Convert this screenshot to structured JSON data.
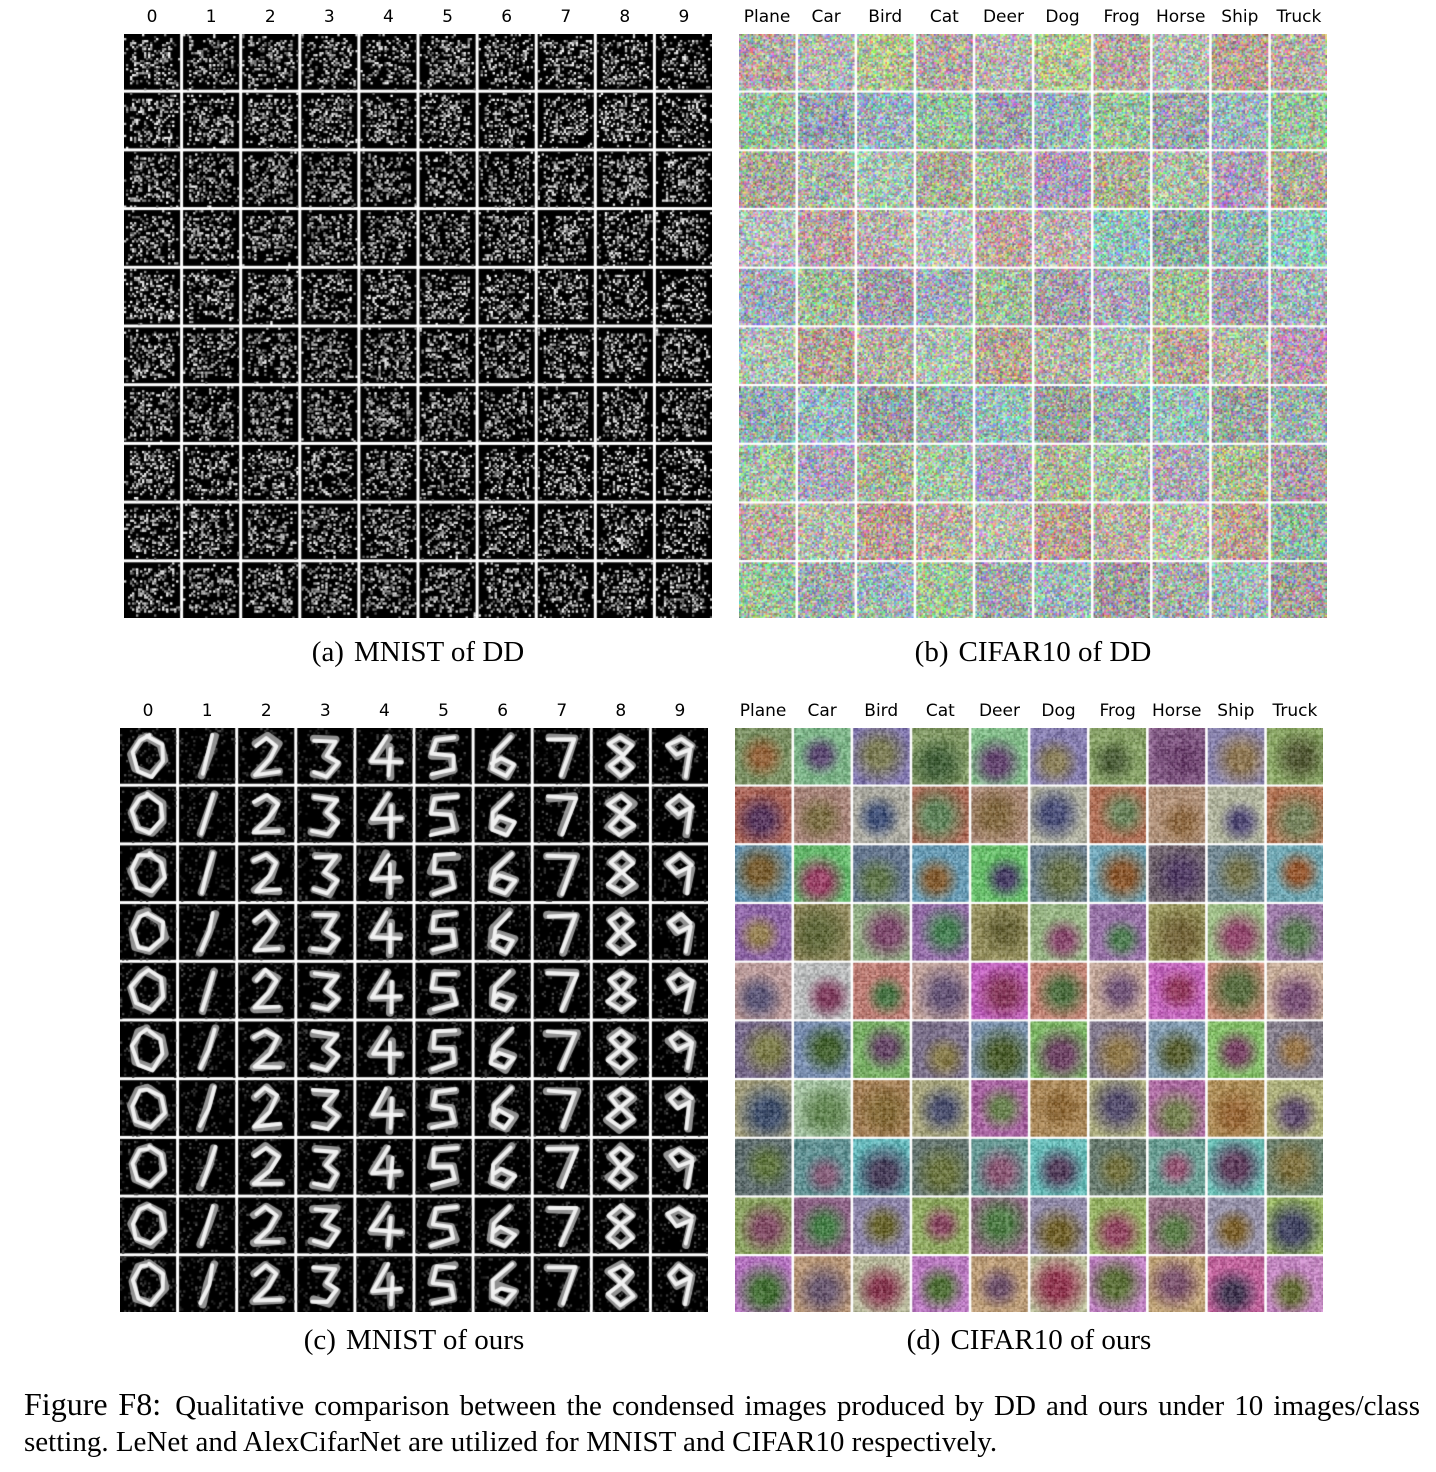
{
  "figure": {
    "label": "Figure F8:",
    "caption": "Qualitative comparison between the condensed images produced by DD and ours under 10 images/class setting. LeNet and AlexCifarNet are utilized for MNIST and CIFAR10 respectively."
  },
  "panels": [
    {
      "id": "a",
      "tag": "(a)",
      "title": "MNIST of DD",
      "dataset": "mnist",
      "method": "dd",
      "rows": 10,
      "classes": [
        "0",
        "1",
        "2",
        "3",
        "4",
        "5",
        "6",
        "7",
        "8",
        "9"
      ]
    },
    {
      "id": "b",
      "tag": "(b)",
      "title": "CIFAR10 of DD",
      "dataset": "cifar10",
      "method": "dd",
      "rows": 10,
      "classes": [
        "Plane",
        "Car",
        "Bird",
        "Cat",
        "Deer",
        "Dog",
        "Frog",
        "Horse",
        "Ship",
        "Truck"
      ]
    },
    {
      "id": "c",
      "tag": "(c)",
      "title": "MNIST of ours",
      "dataset": "mnist",
      "method": "ours",
      "rows": 10,
      "classes": [
        "0",
        "1",
        "2",
        "3",
        "4",
        "5",
        "6",
        "7",
        "8",
        "9"
      ]
    },
    {
      "id": "d",
      "tag": "(d)",
      "title": "CIFAR10 of ours",
      "dataset": "cifar10",
      "method": "ours",
      "rows": 10,
      "classes": [
        "Plane",
        "Car",
        "Bird",
        "Cat",
        "Deer",
        "Dog",
        "Frog",
        "Horse",
        "Ship",
        "Truck"
      ]
    }
  ],
  "colors": {
    "grid_separator": "#ffffff",
    "mnist_background": "#000000"
  }
}
